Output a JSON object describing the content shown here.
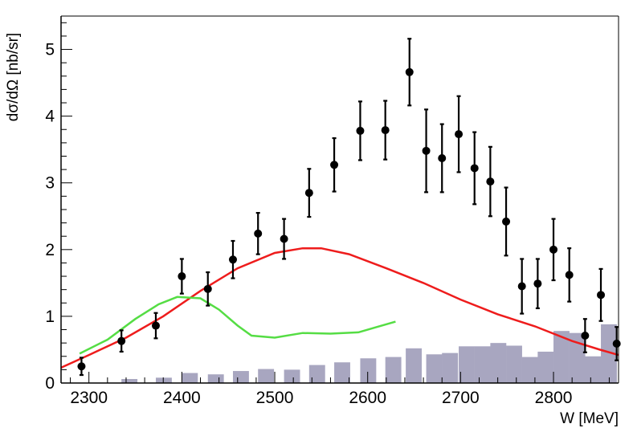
{
  "chart_data": {
    "type": "scatter",
    "xlabel": "W [MeV]",
    "ylabel": "dσ/dΩ [nb/sr]",
    "xlim": [
      2270,
      2870
    ],
    "ylim": [
      0,
      5.5
    ],
    "x_ticks": [
      2300,
      2400,
      2500,
      2600,
      2700,
      2800
    ],
    "y_ticks": [
      0,
      1,
      2,
      3,
      4,
      5
    ],
    "grid": false,
    "legend": "none",
    "series": [
      {
        "kind": "points_with_errors",
        "color": "#000000",
        "points": [
          {
            "x": 2292,
            "y": 0.25,
            "err": 0.13
          },
          {
            "x": 2335,
            "y": 0.63,
            "err": 0.16
          },
          {
            "x": 2372,
            "y": 0.86,
            "err": 0.19
          },
          {
            "x": 2400,
            "y": 1.6,
            "err": 0.26
          },
          {
            "x": 2428,
            "y": 1.41,
            "err": 0.25
          },
          {
            "x": 2455,
            "y": 1.85,
            "err": 0.28
          },
          {
            "x": 2482,
            "y": 2.24,
            "err": 0.31
          },
          {
            "x": 2510,
            "y": 2.16,
            "err": 0.3
          },
          {
            "x": 2537,
            "y": 2.85,
            "err": 0.36
          },
          {
            "x": 2564,
            "y": 3.27,
            "err": 0.4
          },
          {
            "x": 2592,
            "y": 3.78,
            "err": 0.44
          },
          {
            "x": 2619,
            "y": 3.79,
            "err": 0.44
          },
          {
            "x": 2645,
            "y": 4.66,
            "err": 0.5
          },
          {
            "x": 2663,
            "y": 3.48,
            "err": 0.62
          },
          {
            "x": 2680,
            "y": 3.37,
            "err": 0.51
          },
          {
            "x": 2698,
            "y": 3.73,
            "err": 0.57
          },
          {
            "x": 2715,
            "y": 3.22,
            "err": 0.54
          },
          {
            "x": 2732,
            "y": 3.02,
            "err": 0.52
          },
          {
            "x": 2749,
            "y": 2.42,
            "err": 0.51
          },
          {
            "x": 2766,
            "y": 1.45,
            "err": 0.41
          },
          {
            "x": 2783,
            "y": 1.49,
            "err": 0.37
          },
          {
            "x": 2800,
            "y": 2.0,
            "err": 0.46
          },
          {
            "x": 2817,
            "y": 1.62,
            "err": 0.4
          },
          {
            "x": 2834,
            "y": 0.71,
            "err": 0.25
          },
          {
            "x": 2851,
            "y": 1.32,
            "err": 0.39
          },
          {
            "x": 2868,
            "y": 0.59,
            "err": 0.25
          }
        ]
      },
      {
        "kind": "line",
        "color": "#ee1c1c",
        "points": [
          [
            2270,
            0.23
          ],
          [
            2300,
            0.42
          ],
          [
            2340,
            0.68
          ],
          [
            2380,
            1.0
          ],
          [
            2420,
            1.38
          ],
          [
            2460,
            1.72
          ],
          [
            2500,
            1.95
          ],
          [
            2530,
            2.02
          ],
          [
            2550,
            2.02
          ],
          [
            2580,
            1.93
          ],
          [
            2620,
            1.72
          ],
          [
            2660,
            1.5
          ],
          [
            2700,
            1.25
          ],
          [
            2740,
            1.03
          ],
          [
            2780,
            0.85
          ],
          [
            2820,
            0.63
          ],
          [
            2850,
            0.5
          ],
          [
            2870,
            0.42
          ]
        ]
      },
      {
        "kind": "line",
        "color": "#55dd44",
        "points": [
          [
            2290,
            0.44
          ],
          [
            2320,
            0.65
          ],
          [
            2350,
            0.96
          ],
          [
            2375,
            1.18
          ],
          [
            2395,
            1.29
          ],
          [
            2420,
            1.27
          ],
          [
            2440,
            1.1
          ],
          [
            2460,
            0.86
          ],
          [
            2475,
            0.71
          ],
          [
            2500,
            0.68
          ],
          [
            2530,
            0.75
          ],
          [
            2560,
            0.74
          ],
          [
            2590,
            0.76
          ],
          [
            2610,
            0.84
          ],
          [
            2630,
            0.92
          ]
        ]
      },
      {
        "kind": "histogram",
        "color": "#a8a6c0",
        "bin_width": 17.2,
        "bins": [
          {
            "x0": 2335,
            "v": 0.06
          },
          {
            "x0": 2372,
            "v": 0.08
          },
          {
            "x0": 2400,
            "v": 0.15
          },
          {
            "x0": 2428,
            "v": 0.13
          },
          {
            "x0": 2455,
            "v": 0.18
          },
          {
            "x0": 2482,
            "v": 0.21
          },
          {
            "x0": 2510,
            "v": 0.2
          },
          {
            "x0": 2537,
            "v": 0.27
          },
          {
            "x0": 2564,
            "v": 0.31
          },
          {
            "x0": 2592,
            "v": 0.37
          },
          {
            "x0": 2619,
            "v": 0.39
          },
          {
            "x0": 2641,
            "v": 0.52
          },
          {
            "x0": 2663,
            "v": 0.43
          },
          {
            "x0": 2680,
            "v": 0.45
          },
          {
            "x0": 2698,
            "v": 0.55
          },
          {
            "x0": 2715,
            "v": 0.55
          },
          {
            "x0": 2732,
            "v": 0.6
          },
          {
            "x0": 2749,
            "v": 0.56
          },
          {
            "x0": 2766,
            "v": 0.39
          },
          {
            "x0": 2783,
            "v": 0.47
          },
          {
            "x0": 2800,
            "v": 0.78
          },
          {
            "x0": 2817,
            "v": 0.75
          },
          {
            "x0": 2834,
            "v": 0.4
          },
          {
            "x0": 2851,
            "v": 0.88
          }
        ]
      }
    ]
  }
}
